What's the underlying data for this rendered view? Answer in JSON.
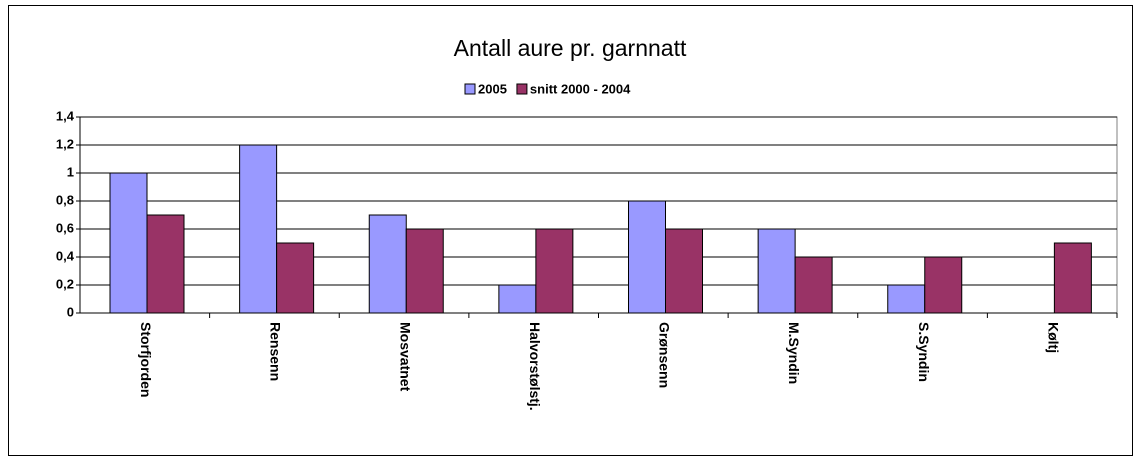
{
  "chart_data": {
    "type": "bar",
    "title": "Antall aure pr. garnnatt",
    "categories": [
      "Storfjorden",
      "Rensenn",
      "Mosvatnet",
      "Halvorstølstj.",
      "Grønsenn",
      "M.Syndin",
      "S.Syndin",
      "Køltj"
    ],
    "series": [
      {
        "name": "2005",
        "color": "#9999ff",
        "values": [
          1,
          1.2,
          0.7,
          0.2,
          0.8,
          0.6,
          0.2,
          null
        ]
      },
      {
        "name": "snitt 2000 - 2004",
        "color": "#993366",
        "values": [
          0.7,
          0.5,
          0.6,
          0.6,
          0.6,
          0.4,
          0.4,
          0.5
        ]
      }
    ],
    "ylim": [
      0,
      1.4
    ],
    "yticks": [
      0,
      {
        "value": 0.2,
        "label": "0,2"
      },
      {
        "value": 0.4,
        "label": "0,4"
      },
      {
        "value": 0.6,
        "label": "0,6"
      },
      {
        "value": 0.8,
        "label": "0,8"
      },
      1,
      {
        "value": 1.2,
        "label": "1,2"
      },
      {
        "value": 1.4,
        "label": "1,4"
      }
    ],
    "grid": true,
    "legend": "top"
  }
}
